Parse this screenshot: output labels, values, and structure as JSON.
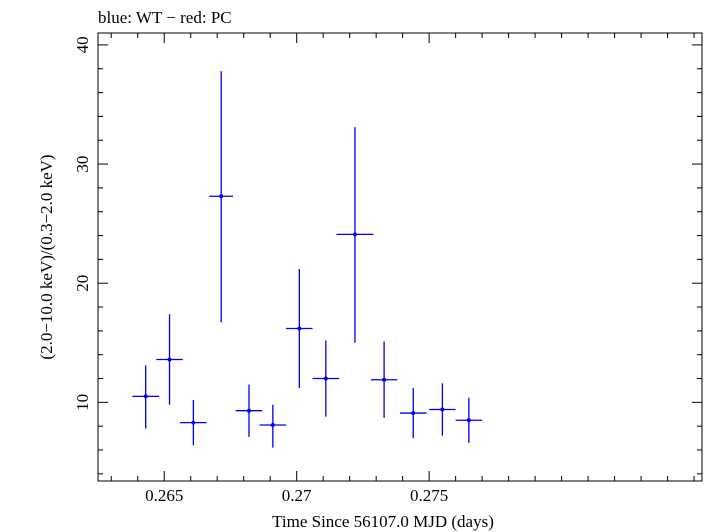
{
  "chart_data": {
    "type": "scatter",
    "title": "blue: WT − red: PC",
    "xlabel": "Time Since 56107.0 MJD (days)",
    "ylabel": "(2.0−10.0 keV)/(0.3−2.0 keV)",
    "xlim": [
      0.2625,
      0.2853
    ],
    "ylim": [
      3.4,
      41.0
    ],
    "x_ticks_major": [
      0.265,
      0.27,
      0.275
    ],
    "x_tick_labels": [
      "0.265",
      "0.27",
      "0.275"
    ],
    "y_ticks_major": [
      10,
      20,
      30,
      40
    ],
    "y_tick_labels": [
      "10",
      "20",
      "30",
      "40"
    ],
    "grid": false,
    "series": [
      {
        "color": "#0000ee",
        "points": [
          {
            "x": 0.2643,
            "y": 10.5,
            "xerr": 0.0005,
            "ylo": 7.8,
            "yhi": 13.1
          },
          {
            "x": 0.2652,
            "y": 13.6,
            "xerr": 0.0005,
            "ylo": 9.8,
            "yhi": 17.4
          },
          {
            "x": 0.2661,
            "y": 8.3,
            "xerr": 0.0005,
            "ylo": 6.4,
            "yhi": 10.2
          },
          {
            "x": 0.26715,
            "y": 27.3,
            "xerr": 0.00045,
            "ylo": 16.7,
            "yhi": 37.8
          },
          {
            "x": 0.2682,
            "y": 9.3,
            "xerr": 0.0005,
            "ylo": 7.1,
            "yhi": 11.5
          },
          {
            "x": 0.2691,
            "y": 8.1,
            "xerr": 0.0005,
            "ylo": 6.2,
            "yhi": 9.8
          },
          {
            "x": 0.2701,
            "y": 16.2,
            "xerr": 0.0005,
            "ylo": 11.2,
            "yhi": 21.2
          },
          {
            "x": 0.2711,
            "y": 12.0,
            "xerr": 0.0005,
            "ylo": 8.8,
            "yhi": 15.2
          },
          {
            "x": 0.2722,
            "y": 24.1,
            "xerr": 0.0007,
            "ylo": 15.0,
            "yhi": 33.1
          },
          {
            "x": 0.2733,
            "y": 11.9,
            "xerr": 0.0005,
            "ylo": 8.7,
            "yhi": 15.1
          },
          {
            "x": 0.2744,
            "y": 9.1,
            "xerr": 0.0005,
            "ylo": 7.0,
            "yhi": 11.2
          },
          {
            "x": 0.2755,
            "y": 9.4,
            "xerr": 0.0005,
            "ylo": 7.2,
            "yhi": 11.6
          },
          {
            "x": 0.2765,
            "y": 8.5,
            "xerr": 0.0005,
            "ylo": 6.6,
            "yhi": 10.4
          }
        ]
      }
    ]
  }
}
